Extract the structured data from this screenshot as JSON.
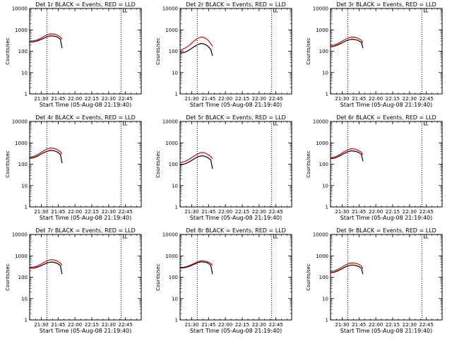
{
  "colors": {
    "events": "#000000",
    "lld": "#e00000",
    "frame": "#000000"
  },
  "chart_data": [
    {
      "type": "line",
      "title": "Det 1r BLACK = Events, RED = LLD",
      "xlabel": "Start Time (05-Aug-08 21:19:40)",
      "ylabel": "Counts/sec",
      "x_ticks": [
        "21:30",
        "21:45",
        "22:00",
        "22:15",
        "22:30",
        "22:45"
      ],
      "y_ticks": [
        "1",
        "10",
        "100",
        "1000",
        "10000"
      ],
      "y_scale": "log",
      "ylim": [
        1,
        10000
      ],
      "xlim": [
        "21:19:40",
        "22:59:00"
      ],
      "marker_times": [
        "21:35:00",
        "22:41:00"
      ],
      "x": [
        "21:19:40",
        "21:23:00",
        "21:26:00",
        "21:29:00",
        "21:32:00",
        "21:35:00",
        "21:38:00",
        "21:41:00",
        "21:44:00",
        "21:47:00",
        "21:48:30"
      ],
      "series": [
        {
          "name": "Events",
          "values": [
            270,
            275,
            300,
            340,
            400,
            470,
            520,
            510,
            470,
            360,
            140
          ]
        },
        {
          "name": "LLD",
          "values": [
            300,
            305,
            330,
            390,
            480,
            580,
            650,
            640,
            580,
            460,
            360
          ]
        }
      ]
    },
    {
      "type": "line",
      "title": "Det 2r BLACK = Events, RED = LLD",
      "xlabel": "Start Time (05-Aug-08 21:19:40)",
      "ylabel": "Counts/sec",
      "x_ticks": [
        "21:30",
        "21:45",
        "22:00",
        "22:15",
        "22:30",
        "22:45"
      ],
      "y_ticks": [
        "1",
        "10",
        "100",
        "1000",
        "10000"
      ],
      "y_scale": "log",
      "ylim": [
        1,
        10000
      ],
      "xlim": [
        "21:19:40",
        "22:59:00"
      ],
      "marker_times": [
        "21:35:00",
        "22:41:00"
      ],
      "x": [
        "21:19:40",
        "21:23:00",
        "21:26:00",
        "21:29:00",
        "21:32:00",
        "21:35:00",
        "21:38:00",
        "21:41:00",
        "21:44:00",
        "21:47:00",
        "21:48:30"
      ],
      "series": [
        {
          "name": "Events",
          "values": [
            80,
            85,
            100,
            125,
            160,
            200,
            230,
            220,
            180,
            120,
            60
          ]
        },
        {
          "name": "LLD",
          "values": [
            110,
            130,
            160,
            210,
            300,
            390,
            460,
            440,
            350,
            230,
            170
          ]
        }
      ]
    },
    {
      "type": "line",
      "title": "Det 3r BLACK = Events, RED = LLD",
      "xlabel": "Start Time (05-Aug-08 21:19:40)",
      "ylabel": "Counts/sec",
      "x_ticks": [
        "21:30",
        "21:45",
        "22:00",
        "22:15",
        "22:30",
        "22:45"
      ],
      "y_ticks": [
        "1",
        "10",
        "100",
        "1000",
        "10000"
      ],
      "y_scale": "log",
      "ylim": [
        1,
        10000
      ],
      "xlim": [
        "21:19:40",
        "22:59:00"
      ],
      "marker_times": [
        "21:35:00",
        "22:41:00"
      ],
      "x": [
        "21:19:40",
        "21:23:00",
        "21:26:00",
        "21:29:00",
        "21:32:00",
        "21:35:00",
        "21:38:00",
        "21:41:00",
        "21:44:00",
        "21:47:00",
        "21:48:30"
      ],
      "series": [
        {
          "name": "Events",
          "values": [
            160,
            170,
            195,
            230,
            280,
            330,
            360,
            355,
            320,
            260,
            140
          ]
        },
        {
          "name": "LLD",
          "values": [
            185,
            195,
            225,
            275,
            340,
            410,
            460,
            455,
            410,
            330,
            240
          ]
        }
      ]
    },
    {
      "type": "line",
      "title": "Det 4r BLACK = Events, RED = LLD",
      "xlabel": "Start Time (05-Aug-08 21:19:40)",
      "ylabel": "Counts/sec",
      "x_ticks": [
        "21:30",
        "21:45",
        "22:00",
        "22:15",
        "22:30",
        "22:45"
      ],
      "y_ticks": [
        "1",
        "10",
        "100",
        "1000",
        "10000"
      ],
      "y_scale": "log",
      "ylim": [
        1,
        10000
      ],
      "xlim": [
        "21:19:40",
        "22:59:00"
      ],
      "marker_times": [
        "21:35:00",
        "22:41:00"
      ],
      "x": [
        "21:19:40",
        "21:23:00",
        "21:26:00",
        "21:29:00",
        "21:32:00",
        "21:35:00",
        "21:38:00",
        "21:41:00",
        "21:44:00",
        "21:47:00",
        "21:48:30"
      ],
      "series": [
        {
          "name": "Events",
          "values": [
            190,
            200,
            230,
            280,
            340,
            400,
            440,
            430,
            380,
            290,
            110
          ]
        },
        {
          "name": "LLD",
          "values": [
            220,
            230,
            265,
            330,
            420,
            510,
            570,
            560,
            490,
            380,
            300
          ]
        }
      ]
    },
    {
      "type": "line",
      "title": "Det 5r BLACK = Events, RED = LLD",
      "xlabel": "Start Time (05-Aug-08 21:19:40)",
      "ylabel": "Counts/sec",
      "x_ticks": [
        "21:30",
        "21:45",
        "22:00",
        "22:15",
        "22:30",
        "22:45"
      ],
      "y_ticks": [
        "1",
        "10",
        "100",
        "1000",
        "10000"
      ],
      "y_scale": "log",
      "ylim": [
        1,
        10000
      ],
      "xlim": [
        "21:19:40",
        "22:59:00"
      ],
      "marker_times": [
        "21:35:00",
        "22:41:00"
      ],
      "x": [
        "21:19:40",
        "21:23:00",
        "21:26:00",
        "21:29:00",
        "21:32:00",
        "21:35:00",
        "21:38:00",
        "21:41:00",
        "21:44:00",
        "21:47:00",
        "21:48:30"
      ],
      "series": [
        {
          "name": "Events",
          "values": [
            95,
            100,
            115,
            140,
            175,
            215,
            245,
            240,
            210,
            160,
            60
          ]
        },
        {
          "name": "LLD",
          "values": [
            120,
            130,
            150,
            190,
            240,
            300,
            350,
            345,
            300,
            230,
            180
          ]
        }
      ]
    },
    {
      "type": "line",
      "title": "Det 6r BLACK = Events, RED = LLD",
      "xlabel": "Start Time (05-Aug-08 21:19:40)",
      "ylabel": "Counts/sec",
      "x_ticks": [
        "21:30",
        "21:45",
        "22:00",
        "22:15",
        "22:30",
        "22:45"
      ],
      "y_ticks": [
        "1",
        "10",
        "100",
        "1000",
        "10000"
      ],
      "y_scale": "log",
      "ylim": [
        1,
        10000
      ],
      "xlim": [
        "21:19:40",
        "22:59:00"
      ],
      "marker_times": [
        "21:35:00",
        "22:41:00"
      ],
      "x": [
        "21:19:40",
        "21:23:00",
        "21:26:00",
        "21:29:00",
        "21:32:00",
        "21:35:00",
        "21:38:00",
        "21:41:00",
        "21:44:00",
        "21:47:00",
        "21:48:30"
      ],
      "series": [
        {
          "name": "Events",
          "values": [
            180,
            190,
            220,
            265,
            320,
            380,
            420,
            410,
            370,
            300,
            140
          ]
        },
        {
          "name": "LLD",
          "values": [
            205,
            215,
            250,
            310,
            390,
            470,
            530,
            520,
            460,
            370,
            280
          ]
        }
      ]
    },
    {
      "type": "line",
      "title": "Det 7r BLACK = Events, RED = LLD",
      "xlabel": "Start Time (05-Aug-08 21:19:40)",
      "ylabel": "Counts/sec",
      "x_ticks": [
        "21:30",
        "21:45",
        "22:00",
        "22:15",
        "22:30",
        "22:45"
      ],
      "y_ticks": [
        "1",
        "10",
        "100",
        "1000",
        "10000"
      ],
      "y_scale": "log",
      "ylim": [
        1,
        10000
      ],
      "xlim": [
        "21:19:40",
        "22:59:00"
      ],
      "marker_times": [
        "21:35:00",
        "22:41:00"
      ],
      "x": [
        "21:19:40",
        "21:23:00",
        "21:26:00",
        "21:29:00",
        "21:32:00",
        "21:35:00",
        "21:38:00",
        "21:41:00",
        "21:44:00",
        "21:47:00",
        "21:48:30"
      ],
      "series": [
        {
          "name": "Events",
          "values": [
            260,
            265,
            290,
            330,
            390,
            460,
            510,
            500,
            450,
            350,
            140
          ]
        },
        {
          "name": "LLD",
          "values": [
            290,
            300,
            330,
            390,
            480,
            580,
            660,
            650,
            580,
            460,
            360
          ]
        }
      ]
    },
    {
      "type": "line",
      "title": "Det 8r BLACK = Events, RED = LLD",
      "xlabel": "Start Time (05-Aug-08 21:19:40)",
      "ylabel": "Counts/sec",
      "x_ticks": [
        "21:30",
        "21:45",
        "22:00",
        "22:15",
        "22:30",
        "22:45"
      ],
      "y_ticks": [
        "1",
        "10",
        "100",
        "1000",
        "10000"
      ],
      "y_scale": "log",
      "ylim": [
        1,
        10000
      ],
      "xlim": [
        "21:19:40",
        "22:59:00"
      ],
      "marker_times": [
        "21:35:00",
        "22:41:00"
      ],
      "x": [
        "21:19:40",
        "21:23:00",
        "21:26:00",
        "21:29:00",
        "21:32:00",
        "21:35:00",
        "21:38:00",
        "21:41:00",
        "21:44:00",
        "21:47:00",
        "21:48:30"
      ],
      "series": [
        {
          "name": "Events",
          "values": [
            270,
            275,
            300,
            340,
            400,
            470,
            520,
            510,
            470,
            360,
            140
          ]
        },
        {
          "name": "LLD",
          "values": [
            290,
            295,
            320,
            370,
            440,
            520,
            590,
            585,
            530,
            440,
            360
          ]
        }
      ]
    },
    {
      "type": "line",
      "title": "Det 9r BLACK = Events, RED = LLD",
      "xlabel": "Start Time (05-Aug-08 21:19:40)",
      "ylabel": "Counts/sec",
      "x_ticks": [
        "21:30",
        "21:45",
        "22:00",
        "22:15",
        "22:30",
        "22:45"
      ],
      "y_ticks": [
        "1",
        "10",
        "100",
        "1000",
        "10000"
      ],
      "y_scale": "log",
      "ylim": [
        1,
        10000
      ],
      "xlim": [
        "21:19:40",
        "22:59:00"
      ],
      "marker_times": [
        "21:35:00",
        "22:41:00"
      ],
      "x": [
        "21:19:40",
        "21:23:00",
        "21:26:00",
        "21:29:00",
        "21:32:00",
        "21:35:00",
        "21:38:00",
        "21:41:00",
        "21:44:00",
        "21:47:00",
        "21:48:30"
      ],
      "series": [
        {
          "name": "Events",
          "values": [
            160,
            170,
            195,
            235,
            285,
            335,
            370,
            365,
            330,
            270,
            140
          ]
        },
        {
          "name": "LLD",
          "values": [
            185,
            195,
            225,
            280,
            350,
            420,
            470,
            465,
            420,
            340,
            250
          ]
        }
      ]
    }
  ]
}
